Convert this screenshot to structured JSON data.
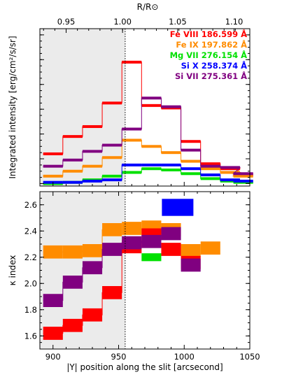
{
  "chart_data": [
    {
      "type": "line",
      "style": "step",
      "ylabel": "Integrated intensity [erg/cm²/s/sr]",
      "top_axis_label": "R/R⊙",
      "top_axis_ticks": [
        "0.95",
        "1.00",
        "1.05",
        "1.10"
      ],
      "top_axis_tick_x": [
        910,
        953,
        995,
        1038
      ],
      "xlim": [
        890,
        1050
      ],
      "ylim": [
        -2,
        125
      ],
      "yticks": [
        0,
        20,
        40,
        60,
        80,
        100,
        120
      ],
      "shaded_region_x": [
        890,
        955
      ],
      "vertical_line_x": 955,
      "legend_position": "top-right",
      "x": [
        900,
        915,
        930,
        945,
        960,
        975,
        990,
        1005,
        1020,
        1035,
        1045
      ],
      "series": [
        {
          "name": "Fe VIII  186.599 Å",
          "color": "#ff0000",
          "values": [
            24,
            38,
            46,
            65,
            98,
            63,
            61,
            34,
            16,
            12,
            7
          ]
        },
        {
          "name": "Fe IX  197.862 Å",
          "color": "#ff8c00",
          "values": [
            6,
            10,
            14,
            21,
            35,
            30,
            25,
            18,
            12,
            9,
            6
          ]
        },
        {
          "name": "Mg VII  276.154 Å",
          "color": "#00e000",
          "values": [
            0,
            1,
            3,
            6,
            9,
            12,
            11,
            8,
            4,
            2,
            1
          ]
        },
        {
          "name": "Si X  258.374 Å",
          "color": "#0000ff",
          "values": [
            1,
            1,
            2,
            3,
            15,
            15,
            15,
            12,
            7,
            3,
            2
          ]
        },
        {
          "name": "Si VII  275.361 Å",
          "color": "#800080",
          "values": [
            14,
            19,
            26,
            31,
            44,
            69,
            62,
            27,
            14,
            13,
            8
          ]
        }
      ]
    },
    {
      "type": "scatter",
      "style": "boxes",
      "xlabel": "|Y| position along the slit [arcsecond]",
      "ylabel": "κ index",
      "xlim": [
        890,
        1050
      ],
      "ylim": [
        1.5,
        2.7
      ],
      "xticks": [
        900,
        950,
        1000,
        1050
      ],
      "yticks": [
        1.6,
        1.8,
        2.0,
        2.2,
        2.4,
        2.6
      ],
      "shaded_region_x": [
        890,
        955
      ],
      "vertical_line_x": 955,
      "series": [
        {
          "name": "Fe VIII",
          "color": "#ff0000",
          "x": [
            900,
            915,
            930,
            945,
            960,
            975,
            990,
            1005
          ],
          "values": [
            1.62,
            1.68,
            1.76,
            1.93,
            2.28,
            2.37,
            2.26,
            2.16
          ],
          "connect": [
            0,
            4
          ]
        },
        {
          "name": "Fe IX",
          "color": "#ff8c00",
          "x": [
            900,
            915,
            930,
            945,
            960,
            975,
            990,
            1005,
            1020
          ],
          "values": [
            2.24,
            2.24,
            2.25,
            2.41,
            2.42,
            2.43,
            2.41,
            2.25,
            2.27
          ],
          "connect": [
            0,
            3
          ]
        },
        {
          "name": "Mg VII",
          "color": "#00e000",
          "x": [
            975
          ],
          "values": [
            2.2
          ]
        },
        {
          "name": "Si X",
          "color": "#0000ff",
          "x": [
            995
          ],
          "values": [
            2.58
          ]
        },
        {
          "name": "Si VII",
          "color": "#800080",
          "x": [
            900,
            915,
            930,
            945,
            960,
            975,
            990,
            1005
          ],
          "values": [
            1.87,
            2.01,
            2.12,
            2.26,
            2.31,
            2.32,
            2.38,
            2.14
          ],
          "connect": [
            0,
            5
          ]
        }
      ]
    }
  ]
}
